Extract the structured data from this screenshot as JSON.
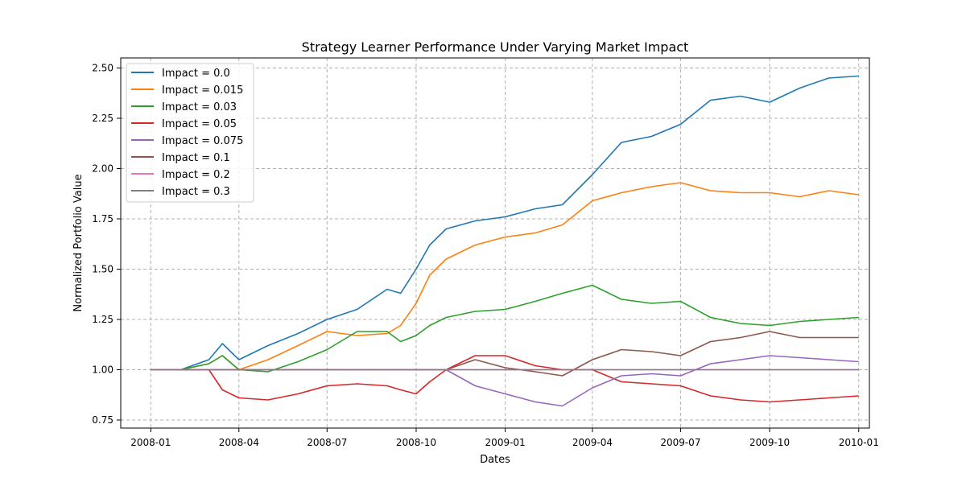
{
  "chart_data": {
    "type": "line",
    "title": "Strategy Learner Performance Under Varying Market Impact",
    "xlabel": "Dates",
    "ylabel": "Normalized Portfolio Value",
    "xlim": [
      "2007-12-01",
      "2010-01-12"
    ],
    "ylim": [
      0.71,
      2.55
    ],
    "x_ticks": [
      "2008-01",
      "2008-04",
      "2008-07",
      "2008-10",
      "2009-01",
      "2009-04",
      "2009-07",
      "2009-10",
      "2010-01"
    ],
    "y_ticks": [
      "0.75",
      "1.00",
      "1.25",
      "1.50",
      "1.75",
      "2.00",
      "2.25",
      "2.50"
    ],
    "grid": true,
    "legend_position": "top-left",
    "x": [
      "2008-01-01",
      "2008-02-01",
      "2008-03-01",
      "2008-03-15",
      "2008-04-01",
      "2008-05-01",
      "2008-06-01",
      "2008-07-01",
      "2008-08-01",
      "2008-09-01",
      "2008-09-15",
      "2008-10-01",
      "2008-10-15",
      "2008-11-01",
      "2008-12-01",
      "2009-01-01",
      "2009-02-01",
      "2009-03-01",
      "2009-04-01",
      "2009-05-01",
      "2009-06-01",
      "2009-07-01",
      "2009-08-01",
      "2009-09-01",
      "2009-10-01",
      "2009-11-01",
      "2009-12-01",
      "2010-01-01"
    ],
    "series": [
      {
        "name": "Impact = 0.0",
        "color": "#1f77b4",
        "values": [
          1.0,
          1.0,
          1.05,
          1.13,
          1.05,
          1.12,
          1.18,
          1.25,
          1.3,
          1.4,
          1.38,
          1.5,
          1.62,
          1.7,
          1.74,
          1.76,
          1.8,
          1.82,
          1.97,
          2.13,
          2.16,
          2.22,
          2.34,
          2.36,
          2.33,
          2.4,
          2.45,
          2.46
        ]
      },
      {
        "name": "Impact = 0.015",
        "color": "#ff7f0e",
        "values": [
          1.0,
          1.0,
          1.03,
          1.07,
          1.0,
          1.05,
          1.12,
          1.19,
          1.17,
          1.18,
          1.22,
          1.33,
          1.47,
          1.55,
          1.62,
          1.66,
          1.68,
          1.72,
          1.84,
          1.88,
          1.91,
          1.93,
          1.89,
          1.88,
          1.88,
          1.86,
          1.89,
          1.87
        ]
      },
      {
        "name": "Impact = 0.03",
        "color": "#2ca02c",
        "values": [
          1.0,
          1.0,
          1.03,
          1.07,
          1.0,
          0.99,
          1.04,
          1.1,
          1.19,
          1.19,
          1.14,
          1.17,
          1.22,
          1.26,
          1.29,
          1.3,
          1.34,
          1.38,
          1.42,
          1.35,
          1.33,
          1.34,
          1.26,
          1.23,
          1.22,
          1.24,
          1.25,
          1.26
        ]
      },
      {
        "name": "Impact = 0.05",
        "color": "#d62728",
        "values": [
          1.0,
          1.0,
          1.0,
          0.9,
          0.86,
          0.85,
          0.88,
          0.92,
          0.93,
          0.92,
          0.9,
          0.88,
          0.94,
          1.0,
          1.07,
          1.07,
          1.02,
          1.0,
          1.0,
          0.94,
          0.93,
          0.92,
          0.87,
          0.85,
          0.84,
          0.85,
          0.86,
          0.87
        ]
      },
      {
        "name": "Impact = 0.075",
        "color": "#9467bd",
        "values": [
          1.0,
          1.0,
          1.0,
          1.0,
          1.0,
          1.0,
          1.0,
          1.0,
          1.0,
          1.0,
          1.0,
          1.0,
          1.0,
          1.0,
          0.92,
          0.88,
          0.84,
          0.82,
          0.91,
          0.97,
          0.98,
          0.97,
          1.03,
          1.05,
          1.07,
          1.06,
          1.05,
          1.04
        ]
      },
      {
        "name": "Impact = 0.1",
        "color": "#8c564b",
        "values": [
          1.0,
          1.0,
          1.0,
          1.0,
          1.0,
          1.0,
          1.0,
          1.0,
          1.0,
          1.0,
          1.0,
          1.0,
          1.0,
          1.0,
          1.05,
          1.01,
          0.99,
          0.97,
          1.05,
          1.1,
          1.09,
          1.07,
          1.14,
          1.16,
          1.19,
          1.16,
          1.16,
          1.16
        ]
      },
      {
        "name": "Impact = 0.2",
        "color": "#e377c2",
        "values": [
          1.0,
          1.0,
          1.0,
          1.0,
          1.0,
          1.0,
          1.0,
          1.0,
          1.0,
          1.0,
          1.0,
          1.0,
          1.0,
          1.0,
          1.0,
          1.0,
          1.0,
          1.0,
          1.0,
          1.0,
          1.0,
          1.0,
          1.0,
          1.0,
          1.0,
          1.0,
          1.0,
          1.0
        ]
      },
      {
        "name": "Impact = 0.3",
        "color": "#7f7f7f",
        "values": [
          1.0,
          1.0,
          1.0,
          1.0,
          1.0,
          1.0,
          1.0,
          1.0,
          1.0,
          1.0,
          1.0,
          1.0,
          1.0,
          1.0,
          1.0,
          1.0,
          1.0,
          1.0,
          1.0,
          1.0,
          1.0,
          1.0,
          1.0,
          1.0,
          1.0,
          1.0,
          1.0,
          1.0
        ]
      }
    ]
  }
}
